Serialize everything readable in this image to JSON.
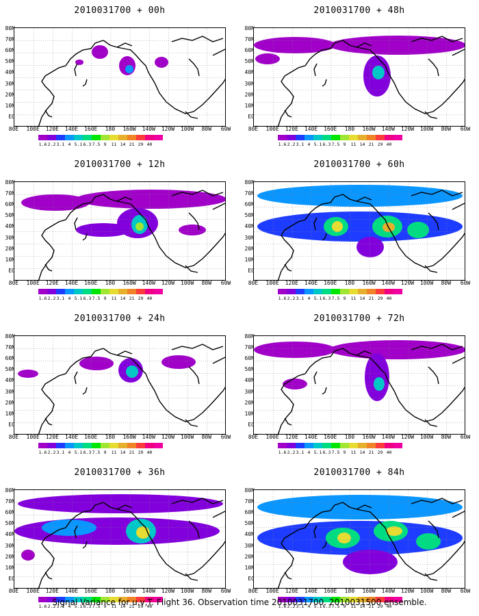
{
  "colors": {
    "palette": [
      "#a000c8",
      "#8200dc",
      "#1e3cff",
      "#0a96ff",
      "#00c8c8",
      "#00dc82",
      "#00e600",
      "#a0e632",
      "#e6dc32",
      "#e6af2d",
      "#f08228",
      "#fa3c3c",
      "#f00082"
    ]
  },
  "colorbar_labels": [
    "1.6",
    "2.2",
    "3.1",
    "4",
    "5.1",
    "6.3",
    "7.5",
    "9",
    "11",
    "14",
    "21",
    "29",
    "40"
  ],
  "lat_labels": [
    "80N",
    "70N",
    "60N",
    "50N",
    "40N",
    "30N",
    "20N",
    "10N",
    "EQ"
  ],
  "lon_labels": [
    "80E",
    "100E",
    "120E",
    "140E",
    "160E",
    "180",
    "160W",
    "140W",
    "120W",
    "100W",
    "80W",
    "60W"
  ],
  "panels": [
    {
      "title": "2010031700 + 00h",
      "level": 0
    },
    {
      "title": "2010031700 + 48h",
      "level": 4
    },
    {
      "title": "2010031700 + 12h",
      "level": 1
    },
    {
      "title": "2010031700 + 60h",
      "level": 5
    },
    {
      "title": "2010031700 + 24h",
      "level": 2
    },
    {
      "title": "2010031700 + 72h",
      "level": 6
    },
    {
      "title": "2010031700 + 36h",
      "level": 3
    },
    {
      "title": "2010031700 + 84h",
      "level": 7
    }
  ],
  "caption": "Signal Variance for u,v,T. Flight 36. Observation time 2010031700. 2010031500 ensemble."
}
